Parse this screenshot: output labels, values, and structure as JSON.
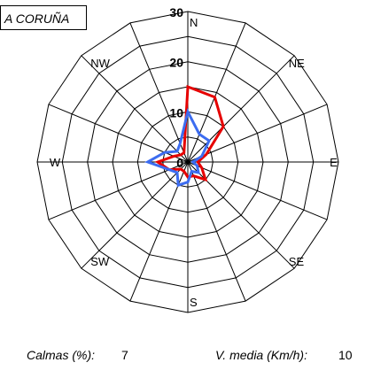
{
  "station": "A CORUÑA",
  "footer": {
    "calm_label": "Calmas (%):",
    "calm_value": "7",
    "speed_label": "V. media (Km/h):",
    "speed_value": "10"
  },
  "chart_data": {
    "type": "radar",
    "directions": [
      "N",
      "NNE",
      "NE",
      "ENE",
      "E",
      "ESE",
      "SE",
      "SSE",
      "S",
      "SSW",
      "SW",
      "WSW",
      "W",
      "WNW",
      "NW",
      "NNW"
    ],
    "direction_labels": [
      "N",
      "",
      "NE",
      "",
      "E",
      "",
      "SE",
      "",
      "S",
      "",
      "SW",
      "",
      "W",
      "",
      "NW",
      ""
    ],
    "radial_ticks": [
      0,
      10,
      20,
      30
    ],
    "rlim": [
      0,
      30
    ],
    "ring_step": 5,
    "series": [
      {
        "color": "#e60000",
        "values": [
          15,
          14,
          10,
          4,
          2,
          3,
          5,
          3,
          3,
          2,
          2,
          4,
          6,
          3,
          2,
          2
        ]
      },
      {
        "color": "#3c6cf0",
        "values": [
          10,
          6,
          6,
          3,
          1,
          2,
          3,
          2,
          4,
          5,
          3,
          4,
          8,
          5,
          3,
          4
        ]
      }
    ]
  }
}
